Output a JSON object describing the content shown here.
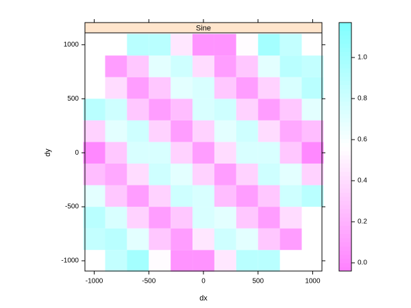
{
  "chart_data": {
    "type": "heatmap",
    "strip": "Sine",
    "xlabel": "dx",
    "ylabel": "dy",
    "x": [
      -1000,
      -800,
      -600,
      -400,
      -200,
      0,
      200,
      400,
      600,
      800,
      1000
    ],
    "y": [
      -1000,
      -800,
      -600,
      -400,
      -200,
      0,
      200,
      400,
      600,
      800,
      1000
    ],
    "z": [
      [
        null,
        0.85,
        1.0,
        0.55,
        0.05,
        0.05,
        0.45,
        0.9,
        0.9,
        null,
        null
      ],
      [
        0.85,
        0.9,
        0.7,
        0.3,
        0.1,
        0.45,
        0.8,
        0.7,
        0.3,
        0.1,
        null
      ],
      [
        0.9,
        0.75,
        0.35,
        0.1,
        0.3,
        0.75,
        0.7,
        0.3,
        0.1,
        0.4,
        null
      ],
      [
        0.7,
        0.3,
        0.1,
        0.35,
        0.8,
        0.75,
        0.25,
        0.1,
        0.3,
        0.8,
        0.9
      ],
      [
        0.25,
        0.15,
        0.4,
        0.8,
        0.7,
        0.35,
        0.1,
        0.35,
        0.8,
        0.7,
        0.35
      ],
      [
        0.0,
        0.3,
        0.75,
        0.75,
        0.35,
        0.1,
        0.4,
        0.75,
        0.75,
        0.3,
        0.0
      ],
      [
        0.35,
        0.7,
        0.8,
        0.35,
        0.1,
        0.35,
        0.7,
        0.8,
        0.4,
        0.15,
        0.25
      ],
      [
        0.9,
        0.8,
        0.3,
        0.1,
        0.25,
        0.75,
        0.8,
        0.35,
        0.1,
        0.3,
        0.7
      ],
      [
        null,
        0.4,
        0.1,
        0.3,
        0.7,
        0.75,
        0.3,
        0.1,
        0.35,
        0.75,
        0.9
      ],
      [
        null,
        0.1,
        0.3,
        0.7,
        0.8,
        0.4,
        0.1,
        0.3,
        0.7,
        0.9,
        0.85
      ],
      [
        null,
        null,
        0.9,
        0.9,
        0.45,
        0.05,
        0.05,
        0.55,
        1.0,
        0.85,
        null
      ]
    ],
    "xlim": [
      -1085,
      1085
    ],
    "ylim": [
      -1095,
      1110
    ],
    "xticks": [
      -1000,
      -500,
      0,
      500,
      1000
    ],
    "yticks": [
      -1000,
      -500,
      0,
      500,
      1000
    ],
    "zlim": [
      -0.04,
      1.17
    ],
    "zticks": [
      {
        "value": 0,
        "label": "0.0"
      },
      {
        "value": 0.2,
        "label": "0.2"
      },
      {
        "value": 0.4,
        "label": "0.4"
      },
      {
        "value": 0.6,
        "label": "0.6"
      },
      {
        "value": 0.8,
        "label": "0.8"
      },
      {
        "value": 1,
        "label": "1.0"
      }
    ],
    "low_color": "#ff80ff",
    "mid_color": "#ffffff",
    "high_color": "#80ffff",
    "strip_color": "#ffe5cc"
  }
}
